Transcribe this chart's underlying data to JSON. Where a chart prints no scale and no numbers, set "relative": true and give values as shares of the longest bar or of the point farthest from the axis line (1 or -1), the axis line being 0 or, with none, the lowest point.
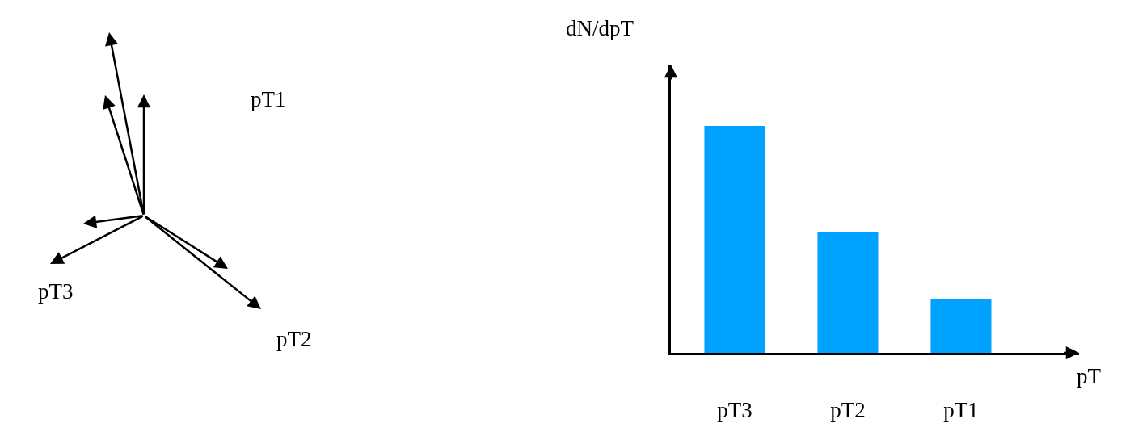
{
  "chart_data": [
    {
      "type": "other",
      "annotations": [
        "pT1",
        "pT2",
        "pT3"
      ]
    },
    {
      "type": "bar",
      "relative": true,
      "categories": [
        "pT3",
        "pT2",
        "pT1"
      ],
      "values": [
        1,
        0.534,
        0.238
      ],
      "color": "#00a2ff",
      "xlabel": "pT",
      "ylabel": "dN/dpT"
    }
  ]
}
